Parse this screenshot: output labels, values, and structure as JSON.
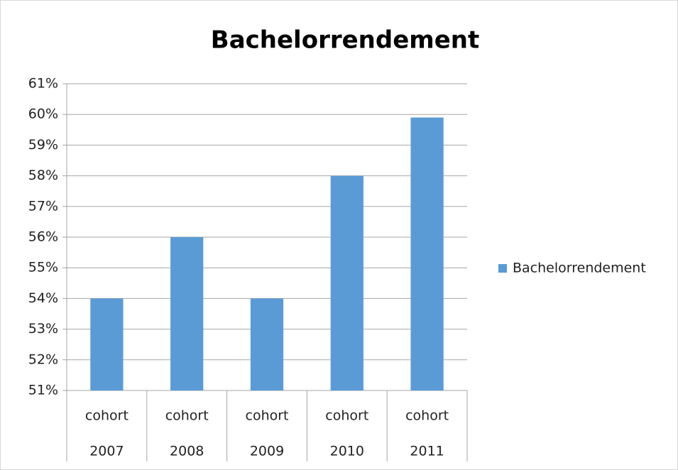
{
  "chart_data": {
    "type": "bar",
    "title": "Bachelorrendement",
    "categories": [
      [
        "cohort",
        "2007"
      ],
      [
        "cohort",
        "2008"
      ],
      [
        "cohort",
        "2009"
      ],
      [
        "cohort",
        "2010"
      ],
      [
        "cohort",
        "2011"
      ]
    ],
    "series": [
      {
        "name": "Bachelorrendement",
        "color": "#5b9bd5",
        "values": [
          54,
          56,
          54,
          58,
          59.9
        ]
      }
    ],
    "ylim": [
      51,
      61
    ],
    "yticks": [
      {
        "value": 51,
        "label": "51%"
      },
      {
        "value": 52,
        "label": "52%"
      },
      {
        "value": 53,
        "label": "53%"
      },
      {
        "value": 54,
        "label": "54%"
      },
      {
        "value": 55,
        "label": "55%"
      },
      {
        "value": 56,
        "label": "56%"
      },
      {
        "value": 57,
        "label": "57%"
      },
      {
        "value": 58,
        "label": "58%"
      },
      {
        "value": 59,
        "label": "59%"
      },
      {
        "value": 60,
        "label": "60%"
      },
      {
        "value": 61,
        "label": "61%"
      }
    ],
    "grid": true,
    "legend": "right"
  }
}
